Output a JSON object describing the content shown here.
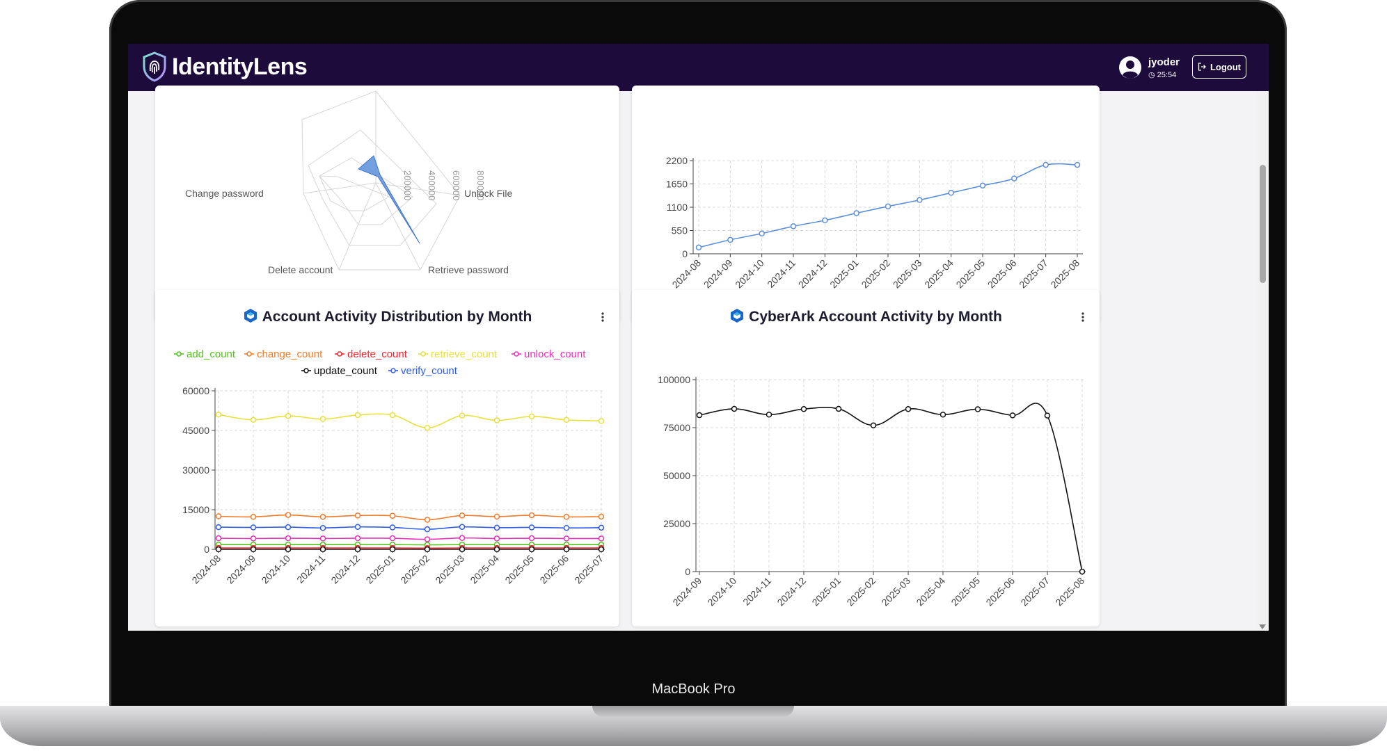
{
  "device": {
    "model_label": "MacBook Pro"
  },
  "header": {
    "brand": "IdentityLens",
    "user": {
      "name": "jyoder",
      "session_timer": "25:54"
    },
    "logout_label": "Logout"
  },
  "radar_card": {
    "labels": [
      "Change password",
      "Unlock File",
      "Delete account",
      "Retrieve password"
    ],
    "radial_ticks": [
      "200000",
      "400000",
      "600000",
      "800000"
    ],
    "accent_color": "#5b8fd9"
  },
  "cumulative_card": {
    "chart_data": {
      "type": "line",
      "x": [
        "2024-08",
        "2024-09",
        "2024-10",
        "2024-11",
        "2024-12",
        "2025-01",
        "2025-02",
        "2025-03",
        "2025-04",
        "2025-05",
        "2025-06",
        "2025-07",
        "2025-08"
      ],
      "series": [
        {
          "values": [
            150,
            330,
            480,
            650,
            790,
            960,
            1120,
            1270,
            1440,
            1610,
            1780,
            2100,
            2100
          ],
          "color": "#5b8fd9"
        }
      ],
      "yticks": [
        0,
        550,
        1100,
        1650,
        2200
      ],
      "ylim": [
        0,
        2200
      ]
    }
  },
  "activity_card": {
    "title": "Account Activity Distribution by Month",
    "chart_data": {
      "type": "line",
      "x": [
        "2024-08",
        "2024-09",
        "2024-10",
        "2024-11",
        "2024-12",
        "2025-01",
        "2025-02",
        "2025-03",
        "2025-04",
        "2025-05",
        "2025-06",
        "2025-07"
      ],
      "series": [
        {
          "name": "add_count",
          "color": "#52c41a",
          "values": [
            1800,
            1800,
            1800,
            1800,
            1800,
            1800,
            1700,
            1800,
            1800,
            1800,
            1800,
            1800
          ]
        },
        {
          "name": "change_count",
          "color": "#f07b2a",
          "values": [
            12500,
            12300,
            13000,
            12300,
            12800,
            12700,
            11200,
            12800,
            12400,
            12900,
            12300,
            12400
          ]
        },
        {
          "name": "delete_count",
          "color": "#f5222d",
          "values": [
            500,
            500,
            500,
            500,
            500,
            500,
            450,
            500,
            500,
            500,
            500,
            500
          ]
        },
        {
          "name": "retrieve_count",
          "color": "#e8e03a",
          "values": [
            51000,
            49000,
            50500,
            49300,
            50800,
            50800,
            46000,
            50600,
            48800,
            50300,
            49000,
            48600
          ]
        },
        {
          "name": "unlock_count",
          "color": "#eb2fb9",
          "values": [
            4200,
            4100,
            4200,
            4100,
            4200,
            4200,
            3800,
            4300,
            4100,
            4200,
            4100,
            4100
          ]
        },
        {
          "name": "update_count",
          "color": "#111111",
          "values": [
            0,
            0,
            0,
            0,
            0,
            0,
            0,
            0,
            0,
            0,
            0,
            0
          ]
        },
        {
          "name": "verify_count",
          "color": "#2f5ce8",
          "values": [
            8400,
            8300,
            8400,
            8100,
            8500,
            8300,
            7600,
            8500,
            8200,
            8300,
            8100,
            8200
          ]
        }
      ],
      "yticks": [
        0,
        15000,
        30000,
        45000,
        60000
      ],
      "ylim": [
        0,
        60000
      ],
      "legend": "top"
    }
  },
  "cyberark_card": {
    "title": "CyberArk Account Activity by Month",
    "chart_data": {
      "type": "line",
      "x": [
        "2024-09",
        "2024-10",
        "2024-11",
        "2024-12",
        "2025-01",
        "2025-02",
        "2025-03",
        "2025-04",
        "2025-05",
        "2025-06",
        "2025-07",
        "2025-08"
      ],
      "series": [
        {
          "color": "#111111",
          "values": [
            81500,
            84800,
            81800,
            84700,
            84800,
            76200,
            84700,
            81800,
            84600,
            81400,
            81300,
            0
          ]
        }
      ],
      "yticks": [
        0,
        25000,
        50000,
        75000,
        100000
      ],
      "ylim": [
        0,
        100000
      ]
    }
  }
}
